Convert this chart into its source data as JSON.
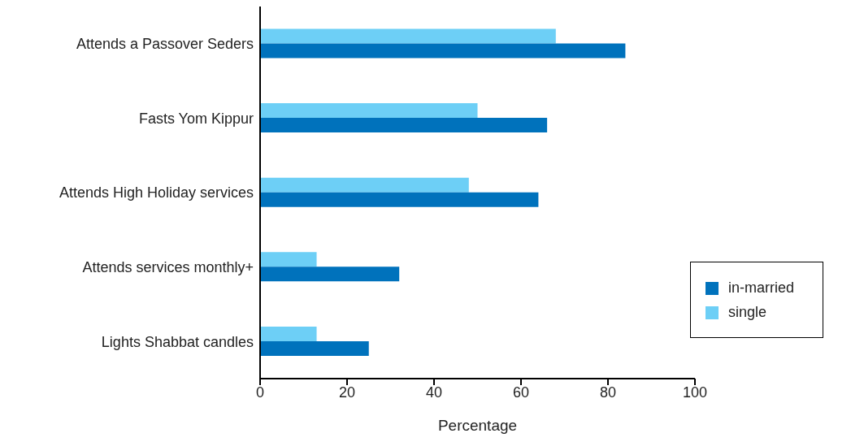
{
  "chart_data": {
    "type": "bar",
    "orientation": "horizontal",
    "xlabel": "Percentage",
    "categories": [
      "Attends a Passover Seders",
      "Fasts Yom Kippur",
      "Attends High Holiday services",
      "Attends services monthly+",
      "Lights Shabbat candles"
    ],
    "series": [
      {
        "name": "single",
        "color": "#6dcff6",
        "values": [
          68,
          50,
          48,
          13,
          13
        ]
      },
      {
        "name": "in-married",
        "color": "#0072bc",
        "values": [
          84,
          66,
          64,
          32,
          25
        ]
      }
    ],
    "xlim": [
      0,
      100
    ],
    "xticks": [
      0,
      20,
      40,
      60,
      80,
      100
    ],
    "grid": false,
    "legend": "bottom right"
  }
}
